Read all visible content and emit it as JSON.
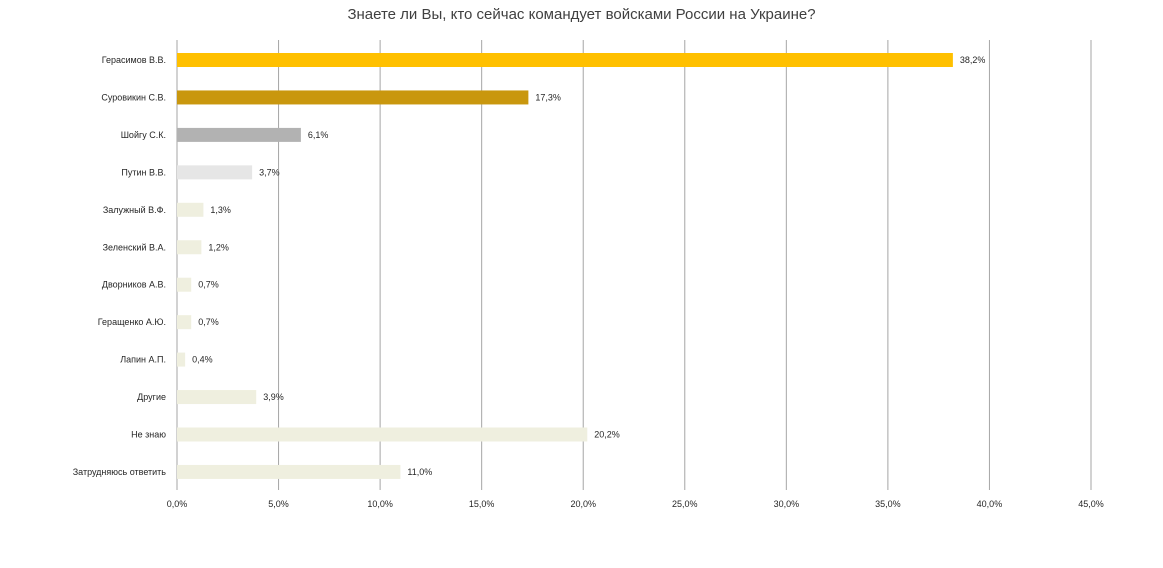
{
  "chart_data": {
    "type": "bar",
    "orientation": "horizontal",
    "title": "Знаете ли Вы, кто сейчас командует войсками России на Украине?",
    "xlabel": "",
    "ylabel": "",
    "categories": [
      "Герасимов В.В.",
      "Суровикин С.В.",
      "Шойгу С.К.",
      "Путин В.В.",
      "Залужный В.Ф.",
      "Зеленский В.А.",
      "Дворников А.В.",
      "Геращенко А.Ю.",
      "Лапин А.П.",
      "Другие",
      "Не знаю",
      "Затрудняюсь ответить"
    ],
    "values": [
      38.2,
      17.3,
      6.1,
      3.7,
      1.3,
      1.2,
      0.7,
      0.7,
      0.4,
      3.9,
      20.2,
      11.0
    ],
    "value_labels": [
      "38,2%",
      "17,3%",
      "6,1%",
      "3,7%",
      "1,3%",
      "1,2%",
      "0,7%",
      "0,7%",
      "0,4%",
      "3,9%",
      "20,2%",
      "11,0%"
    ],
    "bar_colors": [
      "#FFC000",
      "#C9970E",
      "#B2B2B2",
      "#E6E6E6",
      "#EFEFDF",
      "#EFEFDF",
      "#EFEFDF",
      "#EFEFDF",
      "#EFEFDF",
      "#EFEFDF",
      "#EFEFDF",
      "#EFEFDF"
    ],
    "xlim": [
      0,
      45
    ],
    "xticks": [
      0,
      5,
      10,
      15,
      20,
      25,
      30,
      35,
      40,
      45
    ],
    "xtick_labels": [
      "0,0%",
      "5,0%",
      "10,0%",
      "15,0%",
      "20,0%",
      "25,0%",
      "30,0%",
      "35,0%",
      "40,0%",
      "45,0%"
    ],
    "grid": true,
    "legend": "none"
  }
}
